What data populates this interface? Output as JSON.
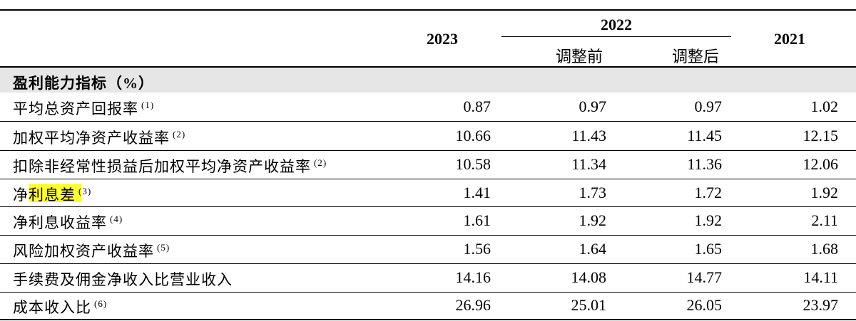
{
  "header": {
    "col_2023": "2023",
    "col_2022": "2022",
    "col_2022_before": "调整前",
    "col_2022_after": "调整后",
    "col_2021": "2021"
  },
  "section": {
    "title": "盈利能力指标（%）"
  },
  "rows": [
    {
      "label": "平均总资产回报率",
      "note": "(1)",
      "values": [
        0.87,
        0.97,
        0.97,
        1.02
      ]
    },
    {
      "label": "加权平均净资产收益率",
      "note": "(2)",
      "values": [
        10.66,
        11.43,
        11.45,
        12.15
      ]
    },
    {
      "label": "扣除非经常性损益后加权平均净资产收益率",
      "note": "(2)",
      "values": [
        10.58,
        11.34,
        11.36,
        12.06
      ]
    },
    {
      "label": "净利息差",
      "note": "(3)",
      "values": [
        1.41,
        1.73,
        1.72,
        1.92
      ]
    },
    {
      "label": "净利息收益率",
      "note": "(4)",
      "values": [
        1.61,
        1.92,
        1.92,
        2.11
      ]
    },
    {
      "label": "风险加权资产收益率",
      "note": "(5)",
      "values": [
        1.56,
        1.64,
        1.65,
        1.68
      ]
    },
    {
      "label": "手续费及佣金净收入比营业收入",
      "values": [
        14.16,
        14.08,
        14.77,
        14.11
      ]
    },
    {
      "label": "成本收入比",
      "note": "(6)",
      "values": [
        26.96,
        25.01,
        26.05,
        23.97
      ]
    }
  ]
}
